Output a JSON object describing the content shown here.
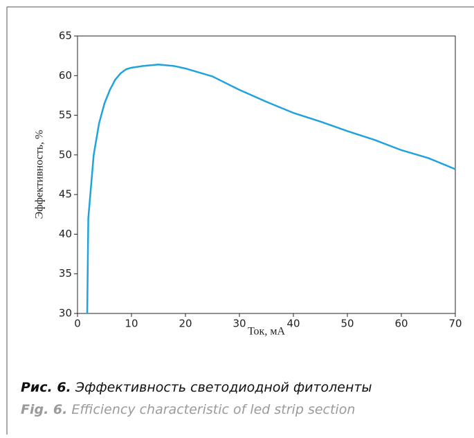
{
  "chart_data": {
    "type": "line",
    "xlabel": "Ток, мА",
    "ylabel": "Эффективность, %",
    "x": [
      1.8,
      2,
      2.5,
      3,
      4,
      5,
      6,
      7,
      8,
      9,
      10,
      12,
      15,
      18,
      20,
      25,
      30,
      35,
      40,
      45,
      50,
      55,
      60,
      65,
      70
    ],
    "values": [
      30,
      42,
      46,
      50,
      54,
      56.5,
      58.2,
      59.5,
      60.3,
      60.8,
      61.0,
      61.2,
      61.4,
      61.2,
      60.9,
      59.9,
      58.2,
      56.7,
      55.3,
      54.2,
      53.0,
      51.9,
      50.6,
      49.6,
      48.2
    ],
    "color": "#1fa3dc",
    "xlim": [
      0,
      70
    ],
    "xticks": [
      0,
      10,
      20,
      30,
      40,
      50,
      60,
      70
    ],
    "ylim": [
      30,
      65
    ],
    "yticks": [
      30,
      35,
      40,
      45,
      50,
      55,
      60,
      65
    ]
  },
  "caption": {
    "ru_label": "Рис. 6.",
    "ru_text": "Эффективность светодиодной фитоленты",
    "en_label": "Fig. 6.",
    "en_text": "Efficiency characteristic of led strip section"
  }
}
